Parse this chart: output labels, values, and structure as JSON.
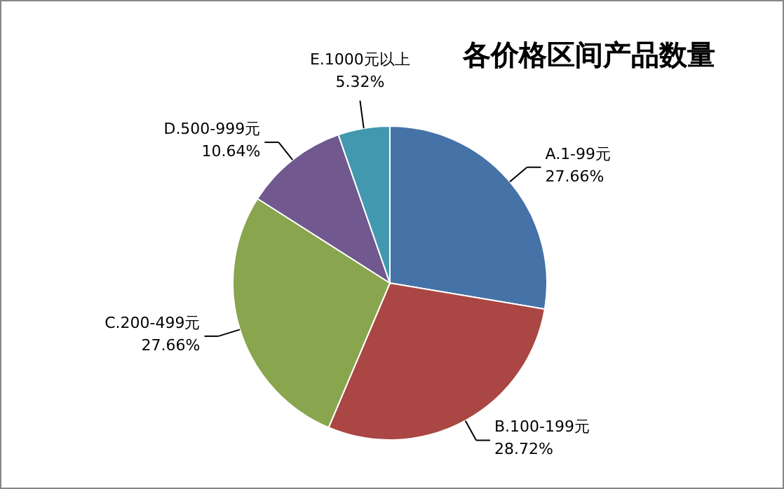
{
  "chart_data": {
    "type": "pie",
    "title": "各价格区间产品数量",
    "categories": [
      "A.1-99元",
      "B.100-199元",
      "C.200-499元",
      "D.500-999元",
      "E.1000元以上"
    ],
    "values": [
      27.66,
      28.72,
      27.66,
      10.64,
      5.32
    ],
    "colors": [
      "#4572a7",
      "#aa4643",
      "#89a54e",
      "#71588f",
      "#4198af"
    ],
    "value_labels": [
      "27.66%",
      "28.72%",
      "27.66%",
      "10.64%",
      "5.32%"
    ]
  }
}
